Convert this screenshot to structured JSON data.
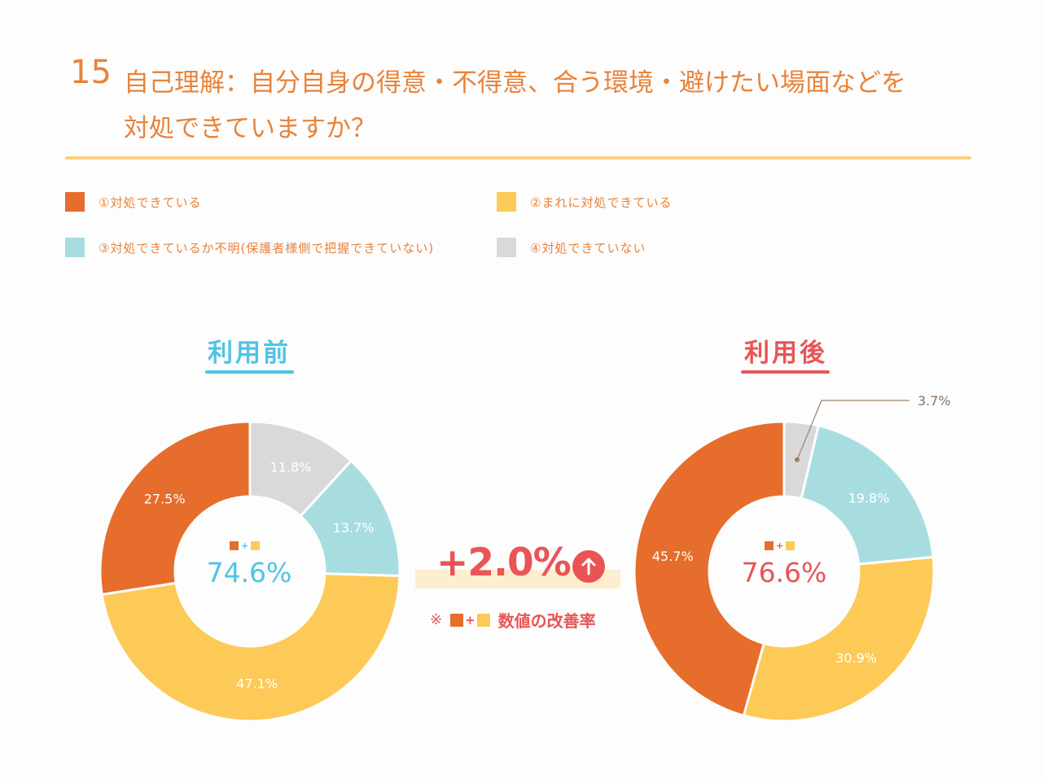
{
  "question": {
    "number": "15",
    "title_line1": "自己理解：自分自身の得意・不得意、合う環境・避けたい場面などを",
    "title_line2": "対処できていますか？"
  },
  "legend": [
    {
      "label": "①対処できている",
      "color": "#e66d2b"
    },
    {
      "label": "②まれに対処できている",
      "color": "#fdca57"
    },
    {
      "label": "③対処できているか不明(保護者様側で把握できていない)",
      "color": "#a8dde0"
    },
    {
      "label": "④対処できていない",
      "color": "#d9d9d9"
    }
  ],
  "colors": {
    "before_accent": "#4ec4e5",
    "after_accent": "#ea5455",
    "orange": "#e66d2b",
    "yellow": "#fdca57",
    "teal": "#a8dde0",
    "gray": "#d9d9d9"
  },
  "comparison": {
    "value": "+2.0%",
    "note_mark": "※",
    "note_plus": "+",
    "note_text": "数値の改善率",
    "arrow_icon": "up-arrow-icon"
  },
  "chart_data": [
    {
      "type": "pie",
      "title": "利用前",
      "center_plus": "+",
      "center_value": "74.6%",
      "categories": [
        "①対処できている",
        "②まれに対処できている",
        "③対処できているか不明(保護者様側で把握できていない)",
        "④対処できていない"
      ],
      "values": [
        27.5,
        47.1,
        13.7,
        11.8
      ],
      "labels": [
        "27.5%",
        "47.1%",
        "13.7%",
        "11.8%"
      ]
    },
    {
      "type": "pie",
      "title": "利用後",
      "center_plus": "+",
      "center_value": "76.6%",
      "categories": [
        "①対処できている",
        "②まれに対処できている",
        "③対処できているか不明(保護者様側で把握できていない)",
        "④対処できていない"
      ],
      "values": [
        45.7,
        30.9,
        19.8,
        3.7
      ],
      "labels": [
        "45.7%",
        "30.9%",
        "19.8%",
        "3.7%"
      ]
    }
  ]
}
